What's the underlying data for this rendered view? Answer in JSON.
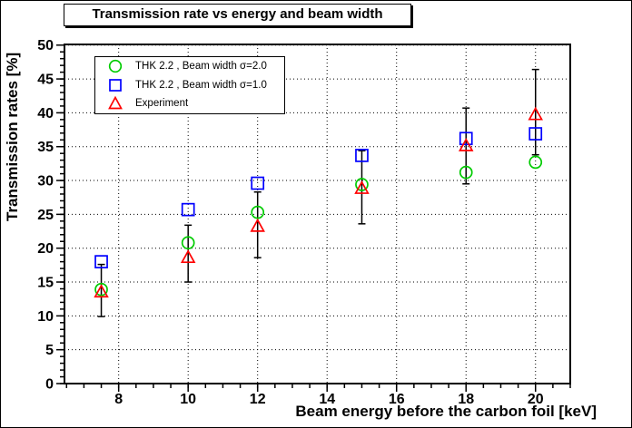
{
  "chart_data": {
    "type": "scatter",
    "title": "Transmission rate vs energy and beam width",
    "xlabel": "Beam energy before the carbon foil [keV]",
    "ylabel": "Transmission rates [%]",
    "xlim": [
      6.44,
      21.0
    ],
    "ylim": [
      0,
      50.1
    ],
    "x_major_ticks": [
      8,
      10,
      12,
      14,
      16,
      18,
      20
    ],
    "x_minor_start": 6.5,
    "x_minor_step": 0.5,
    "y_major_ticks": [
      0,
      5,
      10,
      15,
      20,
      25,
      30,
      35,
      40,
      45,
      50
    ],
    "y_minor_start": 0,
    "y_minor_step": 1,
    "grid": "dotted-at-major-ticks",
    "legend_position": "top-left",
    "x": [
      7.5,
      10,
      12,
      15,
      18,
      20
    ],
    "series": [
      {
        "name": "THK 2.2 , Beam width σ=2.0",
        "marker": "circle",
        "color": "#00cc00",
        "values": [
          13.9,
          20.8,
          25.3,
          29.4,
          31.2,
          32.7
        ]
      },
      {
        "name": "THK 2.2 , Beam width σ=1.0",
        "marker": "square",
        "color": "#0000ff",
        "values": [
          18.0,
          25.7,
          29.6,
          33.7,
          36.2,
          36.9
        ]
      },
      {
        "name": "Experiment",
        "marker": "triangle",
        "color": "#ff0000",
        "values": [
          13.6,
          18.7,
          23.3,
          28.9,
          35.2,
          39.8
        ],
        "error_low": [
          9.9,
          15.0,
          18.6,
          23.6,
          29.5,
          33.8
        ],
        "error_high": [
          17.6,
          23.4,
          28.3,
          34.4,
          40.7,
          46.4
        ]
      }
    ]
  }
}
